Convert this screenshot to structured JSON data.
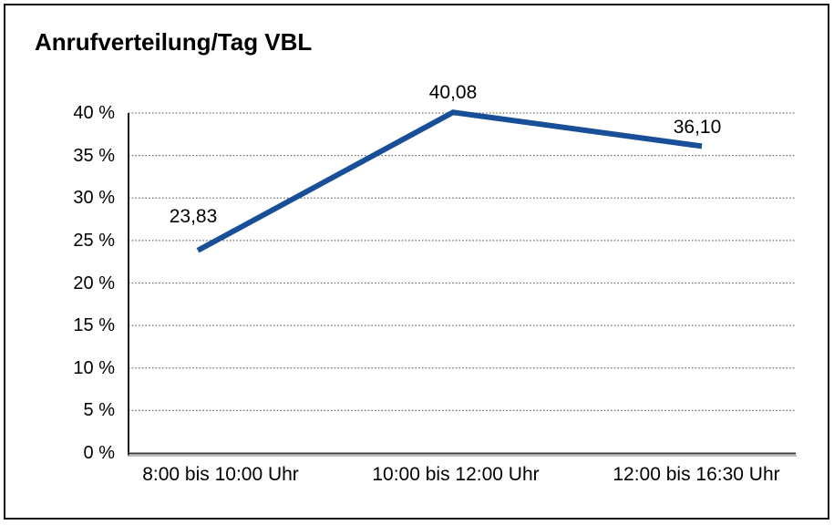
{
  "chart_data": {
    "type": "line",
    "title": "Anrufverteilung/Tag VBL",
    "categories": [
      "8:00 bis 10:00 Uhr",
      "10:00 bis 12:00 Uhr",
      "12:00 bis 16:30 Uhr"
    ],
    "values": [
      23.83,
      40.08,
      36.1
    ],
    "point_labels": [
      "23,83",
      "40,08",
      "36,10"
    ],
    "y_ticks": [
      0,
      5,
      10,
      15,
      20,
      25,
      30,
      35,
      40
    ],
    "y_tick_labels": [
      "0 %",
      "5 %",
      "10 %",
      "15 %",
      "20 %",
      "25 %",
      "30 %",
      "35 %",
      "40 %"
    ],
    "ylim": [
      0,
      40
    ],
    "xlabel": "",
    "ylabel": "",
    "legend": "none",
    "grid": "horizontal-dotted",
    "decimal_separator": ","
  },
  "colors": {
    "line": "#184F98",
    "text": "#000000",
    "grid": "#666666",
    "axis": "#1a1a1a",
    "axis_shadow": "#a8a8a8",
    "frame_border": "#111111",
    "background": "#ffffff"
  }
}
